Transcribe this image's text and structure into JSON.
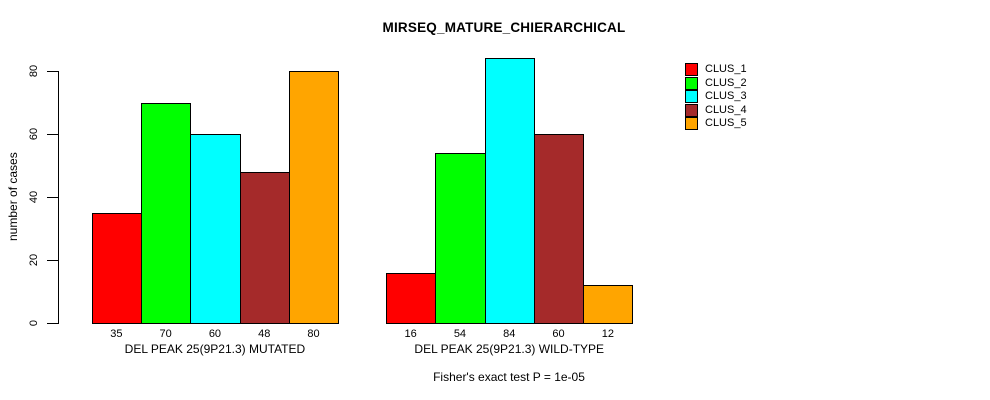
{
  "chart_data": {
    "type": "bar",
    "title": "MIRSEQ_MATURE_CHIERARCHICAL",
    "ylabel": "number of cases",
    "xlabel": "",
    "ylim": [
      0,
      84
    ],
    "yticks": [
      0,
      20,
      40,
      60,
      80
    ],
    "grid": false,
    "legend_position": "top-right",
    "show_value_labels": true,
    "categories": [
      "DEL PEAK 25(9P21.3) MUTATED",
      "DEL PEAK 25(9P21.3) WILD-TYPE"
    ],
    "series": [
      {
        "name": "CLUS_1",
        "color": "#FF0000",
        "values": [
          35,
          16
        ]
      },
      {
        "name": "CLUS_2",
        "color": "#00FF00",
        "values": [
          70,
          54
        ]
      },
      {
        "name": "CLUS_3",
        "color": "#00FFFF",
        "values": [
          60,
          84
        ]
      },
      {
        "name": "CLUS_4",
        "color": "#A52A2A",
        "values": [
          48,
          60
        ]
      },
      {
        "name": "CLUS_5",
        "color": "#FFA500",
        "values": [
          80,
          12
        ]
      }
    ],
    "annotation": "Fisher's exact test P = 1e-05"
  }
}
